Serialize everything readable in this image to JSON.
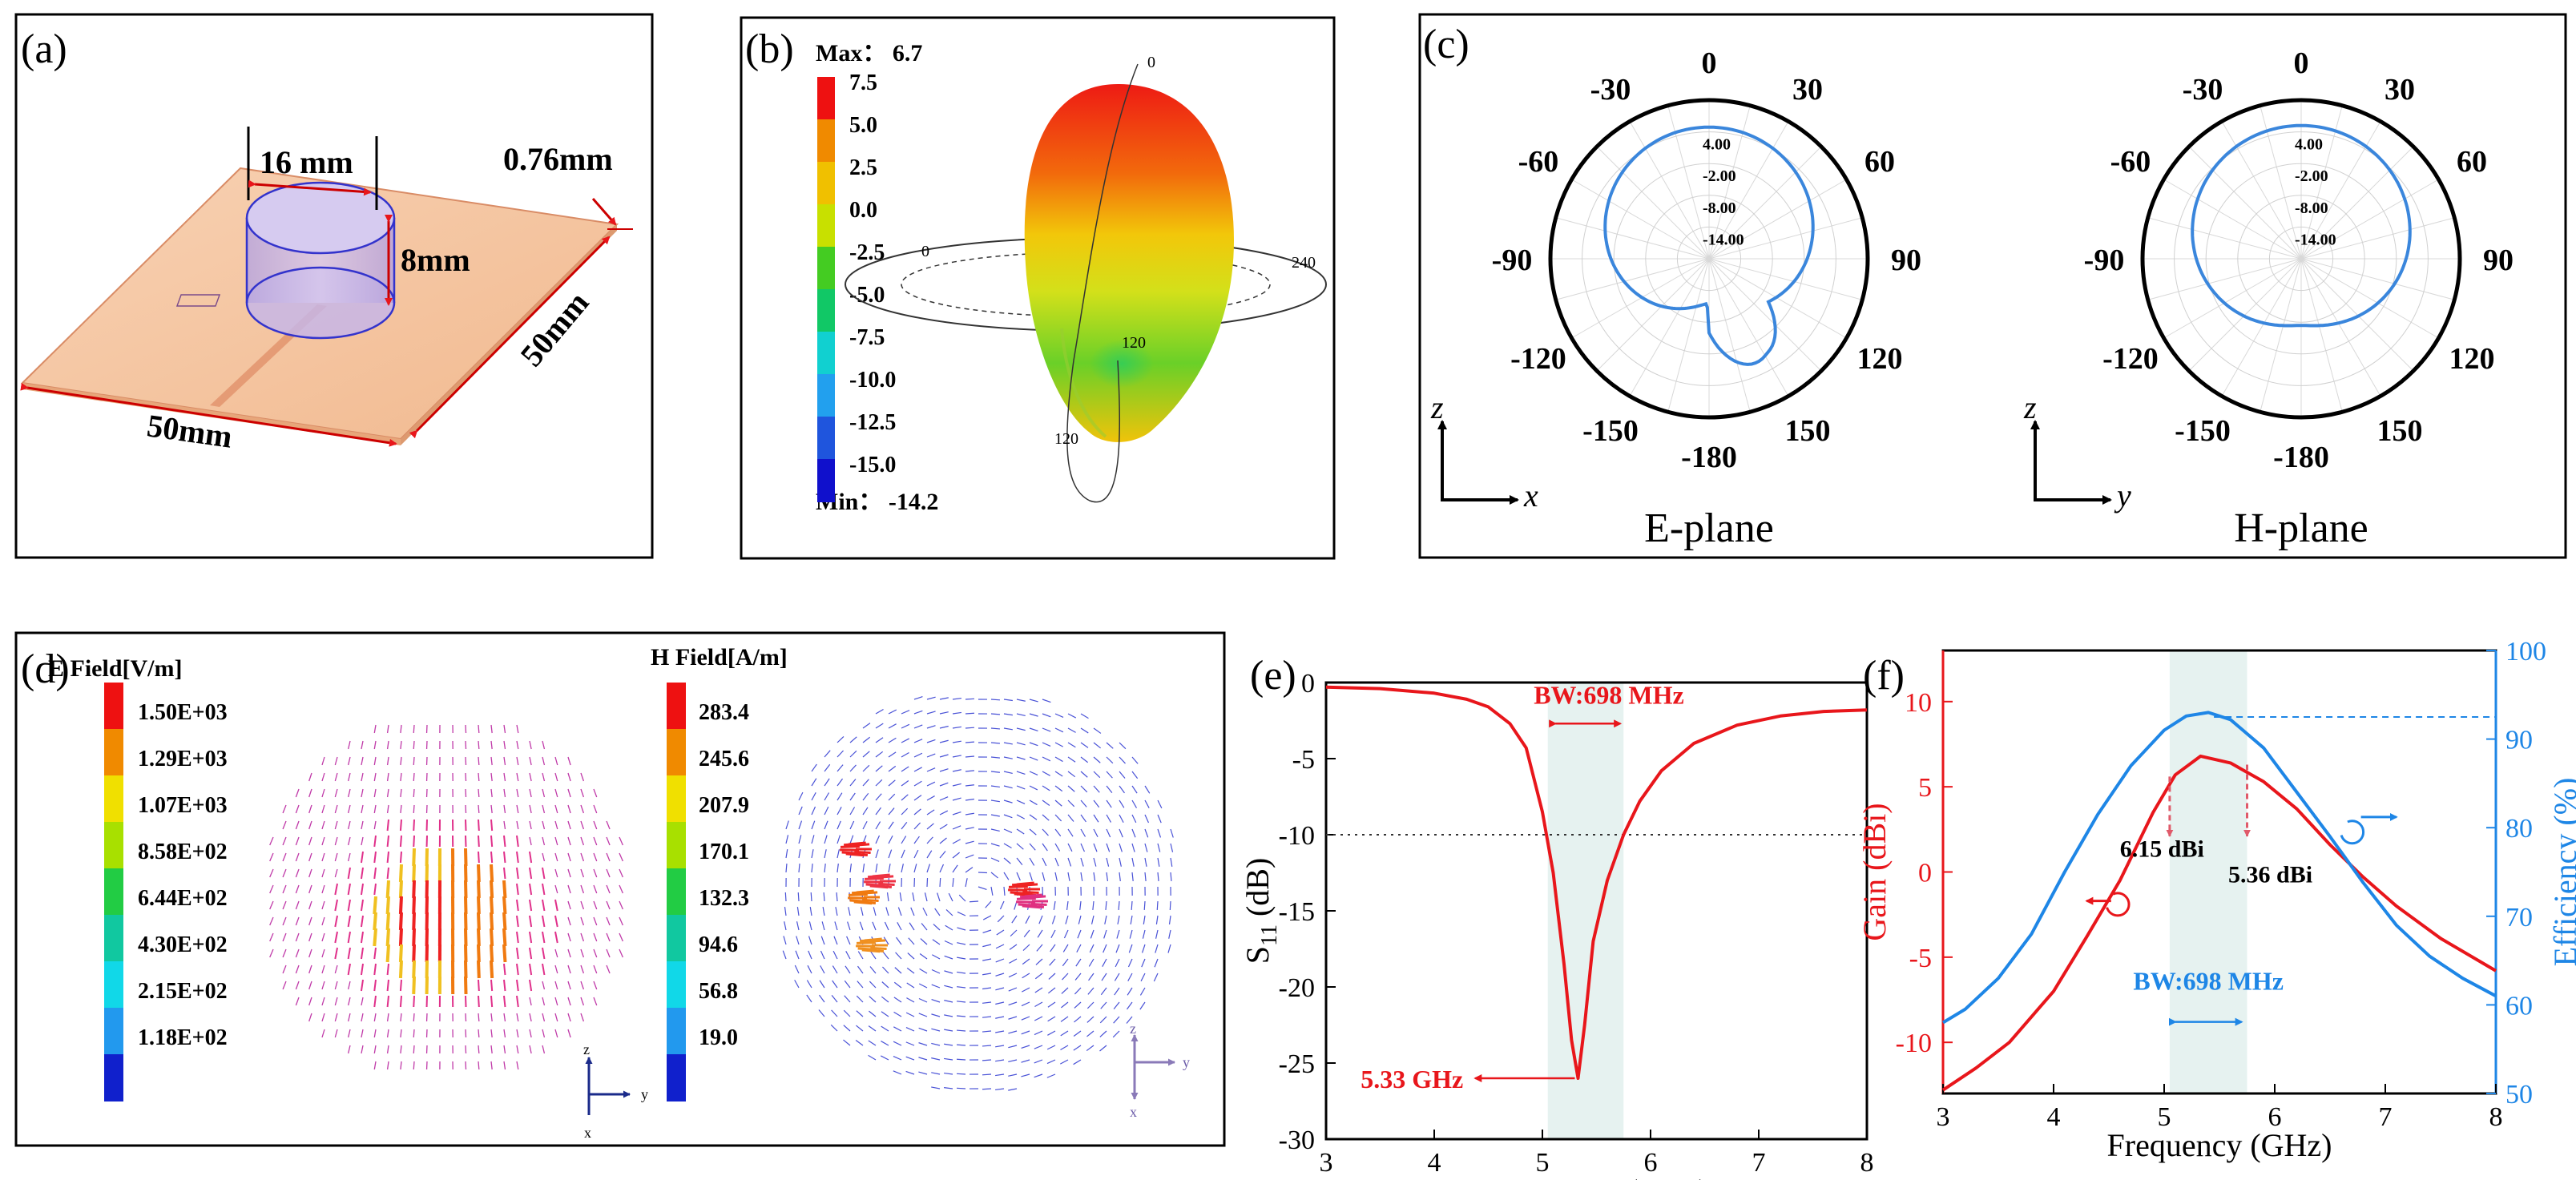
{
  "panels": {
    "a": {
      "label": "(a)",
      "dim_cyl_dia": "16 mm",
      "dim_cyl_h": "8mm",
      "dim_thick": "0.76mm",
      "dim_right": "50mm",
      "dim_bottom": "50mm"
    },
    "b": {
      "label": "(b)",
      "max_text": "Max： 6.7",
      "min_text": "Min： -14.2",
      "legend": [
        "7.5",
        "5.0",
        "2.5",
        "0.0",
        "-2.5",
        "-5.0",
        "-7.5",
        "-10.0",
        "-12.5",
        "-15.0"
      ],
      "colors": [
        "#ee1111",
        "#f08a00",
        "#f0c000",
        "#c8e000",
        "#44cc22",
        "#11c866",
        "#11d0d0",
        "#22a0ee",
        "#1f55dd",
        "#1010cc"
      ],
      "axis_labels": [
        "0",
        "0",
        "240",
        "120",
        "120"
      ]
    },
    "c": {
      "label": "(c)",
      "angles": [
        "0",
        "30",
        "60",
        "90",
        "120",
        "150",
        "-180",
        "-150",
        "-120",
        "-90",
        "-60",
        "-30"
      ],
      "rings": [
        "4.00",
        "-2.00",
        "-8.00",
        "-14.00"
      ],
      "e_plane_title": "E-plane",
      "h_plane_title": "H-plane",
      "e_axes": [
        "z",
        "x"
      ],
      "h_axes": [
        "z",
        "y"
      ]
    },
    "d": {
      "label": "(d)",
      "e_title": "E Field[V/m]",
      "e_values": [
        "1.50E+03",
        "1.29E+03",
        "1.07E+03",
        "8.58E+02",
        "6.44E+02",
        "4.30E+02",
        "2.15E+02",
        "1.18E+02"
      ],
      "h_title": "H Field[A/m]",
      "h_values": [
        "283.4",
        "245.6",
        "207.9",
        "170.1",
        "132.3",
        "94.6",
        "56.8",
        "19.0"
      ],
      "colors": [
        "#ee1111",
        "#f08a00",
        "#f0e000",
        "#a8e000",
        "#22cc44",
        "#11c8a0",
        "#11d8e8",
        "#2299ee",
        "#1020cc"
      ],
      "e_axes": [
        "z",
        "y",
        "x"
      ],
      "h_axes": [
        "z",
        "y",
        "x"
      ]
    },
    "e": {
      "label": "(e)"
    },
    "f": {
      "label": "(f)"
    }
  },
  "chart_data": [
    {
      "type": "line",
      "panel": "(e)",
      "xlabel": "Frequency (GHz)",
      "ylabel_main": "S",
      "ylabel_sub": "11",
      "ylabel_tail": " (dB)",
      "xlim": [
        3,
        8
      ],
      "ylim": [
        -30,
        0
      ],
      "xticks": [
        "3",
        "4",
        "5",
        "6",
        "7",
        "8"
      ],
      "yticks": [
        "0",
        "-5",
        "-10",
        "-15",
        "-20",
        "-25",
        "-30"
      ],
      "series": [
        {
          "name": "S11",
          "color": "#e8161b",
          "x": [
            3.0,
            3.5,
            4.0,
            4.3,
            4.5,
            4.7,
            4.85,
            5.0,
            5.1,
            5.2,
            5.27,
            5.33,
            5.39,
            5.47,
            5.6,
            5.75,
            5.9,
            6.1,
            6.4,
            6.8,
            7.2,
            7.6,
            8.0
          ],
          "y": [
            -0.3,
            -0.4,
            -0.7,
            -1.1,
            -1.6,
            -2.7,
            -4.3,
            -8.5,
            -12.5,
            -18.5,
            -23.5,
            -26.0,
            -22.5,
            -17.0,
            -13.0,
            -10.0,
            -7.8,
            -5.8,
            -4.0,
            -2.8,
            -2.2,
            -1.9,
            -1.8
          ]
        }
      ],
      "threshold": -10,
      "band": [
        5.05,
        5.75
      ],
      "annotations": {
        "bw": "BW:698 MHz",
        "freq": "5.33 GHz"
      }
    },
    {
      "type": "line",
      "panel": "(f)",
      "xlabel": "Frequency (GHz)",
      "ylabel": "Gain (dBi)",
      "ylabel_right": "Efficiency (%)",
      "xlim": [
        3,
        8
      ],
      "ylim": [
        -13,
        13
      ],
      "ylim_right": [
        50,
        100
      ],
      "xticks": [
        "3",
        "4",
        "5",
        "6",
        "7",
        "8"
      ],
      "yticks": [
        "10",
        "5",
        "0",
        "-5",
        "-10"
      ],
      "yticks_right": [
        "100",
        "90",
        "80",
        "70",
        "60",
        "50"
      ],
      "series": [
        {
          "name": "Gain",
          "axis": "left",
          "color": "#e8161b",
          "x": [
            3.0,
            3.3,
            3.6,
            4.0,
            4.3,
            4.6,
            4.9,
            5.1,
            5.33,
            5.6,
            5.9,
            6.2,
            6.5,
            6.8,
            7.1,
            7.5,
            8.0
          ],
          "y": [
            -12.8,
            -11.5,
            -10.0,
            -7.0,
            -3.8,
            -0.5,
            3.5,
            5.7,
            6.8,
            6.4,
            5.3,
            3.7,
            1.6,
            -0.3,
            -2.0,
            -3.9,
            -5.8
          ]
        },
        {
          "name": "Efficiency",
          "axis": "right",
          "color": "#1e86e6",
          "x": [
            3.0,
            3.2,
            3.5,
            3.8,
            4.1,
            4.4,
            4.7,
            5.0,
            5.2,
            5.4,
            5.6,
            5.9,
            6.2,
            6.5,
            6.8,
            7.1,
            7.4,
            7.7,
            8.0
          ],
          "y": [
            58.0,
            59.5,
            63.0,
            68.0,
            75.0,
            81.5,
            87.0,
            91.0,
            92.6,
            93.0,
            92.2,
            89.0,
            84.0,
            79.0,
            73.8,
            69.0,
            65.5,
            63.0,
            61.0
          ]
        }
      ],
      "band": [
        5.05,
        5.75
      ],
      "ref_line_eff": 92.5,
      "annotations": {
        "gain_a": "6.15 dBi",
        "gain_b": "5.36 dBi",
        "bw": "BW:698 MHz"
      }
    }
  ]
}
